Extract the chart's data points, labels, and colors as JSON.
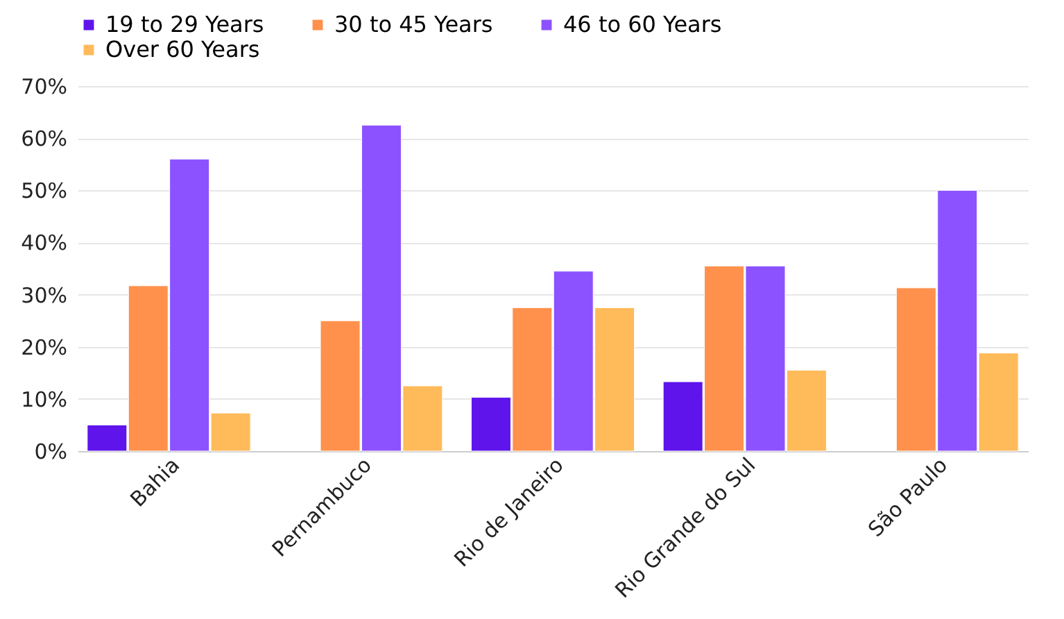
{
  "chart_data": {
    "type": "bar",
    "categories": [
      "Bahia",
      "Pernambuco",
      "Rio de Janeiro",
      "Rio Grande do Sul",
      "São Paulo"
    ],
    "series": [
      {
        "name": "19 to 29 Years",
        "color": "#5f14eb",
        "values": [
          5,
          null,
          10.3,
          13.3,
          null
        ]
      },
      {
        "name": "30 to 45 Years",
        "color": "#ff914d",
        "values": [
          31.7,
          25,
          27.5,
          35.5,
          31.3
        ]
      },
      {
        "name": "46 to 60 Years",
        "color": "#8c52ff",
        "values": [
          56,
          62.5,
          34.5,
          35.5,
          50
        ]
      },
      {
        "name": "Over 60 Years",
        "color": "#ffba5a",
        "values": [
          7.3,
          12.5,
          27.5,
          15.5,
          18.8
        ]
      }
    ],
    "ylim": [
      0,
      70
    ],
    "yticks": [
      {
        "value": 0,
        "label": "0%"
      },
      {
        "value": 10,
        "label": "10%"
      },
      {
        "value": 20,
        "label": "20%"
      },
      {
        "value": 30,
        "label": "30%"
      },
      {
        "value": 40,
        "label": "40%"
      },
      {
        "value": 50,
        "label": "50%"
      },
      {
        "value": 60,
        "label": "60%"
      },
      {
        "value": 70,
        "label": "70%"
      }
    ],
    "grid": "y",
    "legend": "top"
  }
}
